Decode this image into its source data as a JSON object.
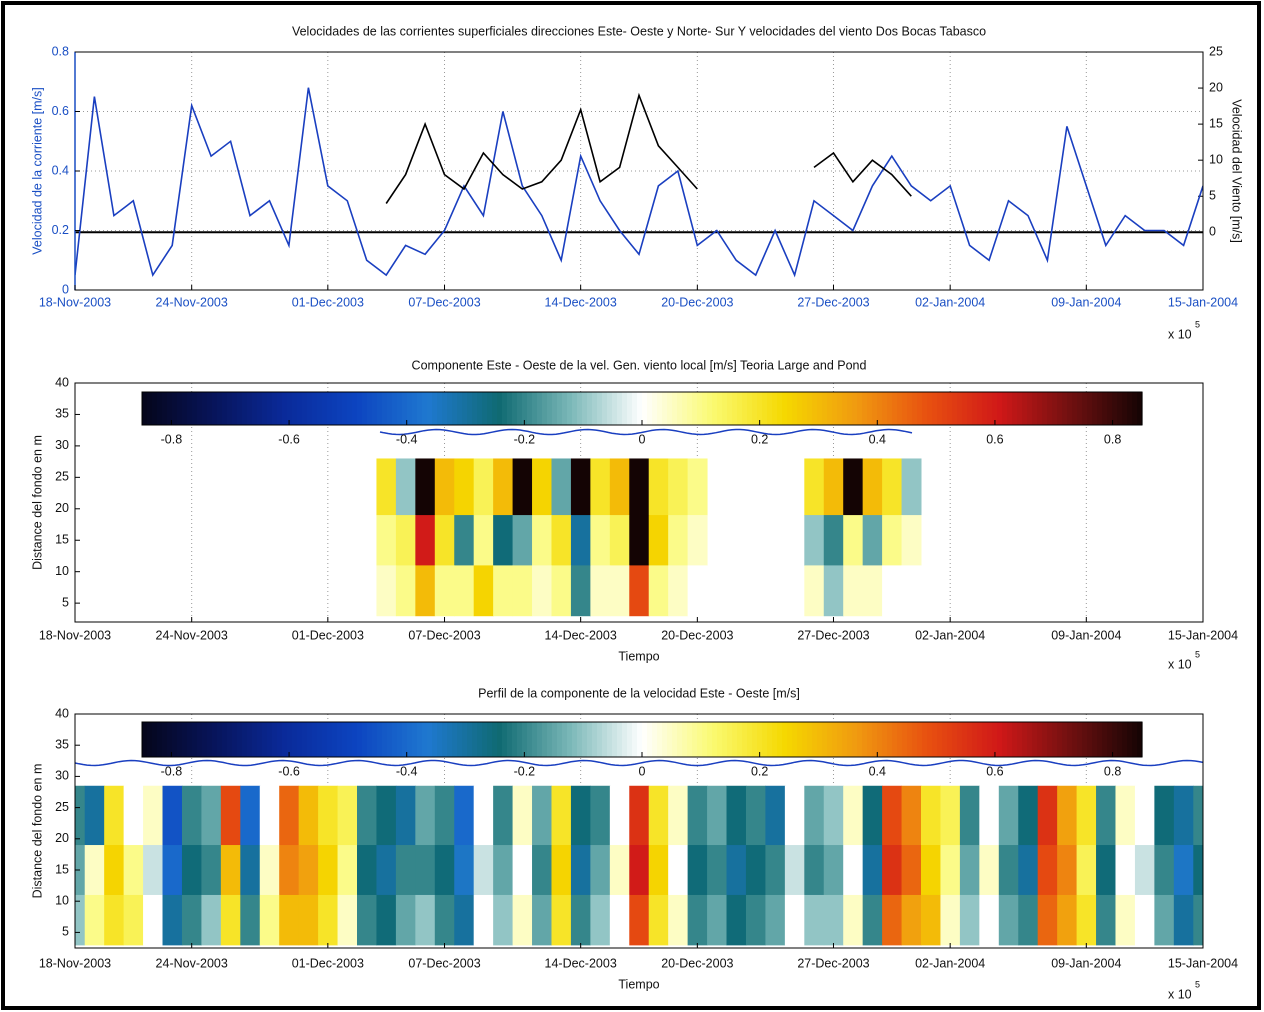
{
  "chart_data": [
    {
      "type": "line",
      "title": "Velocidades de las corrientes superficiales direcciones Este- Oeste y Norte- Sur Y velocidades del viento Dos Bocas Tabasco",
      "ylabel": "Velocidad de la corriente [m/s]",
      "y2label": "Velocidad del Viento [m/s]",
      "x_multiplier": "x 10",
      "x_multiplier_exponent": "5",
      "x": [
        731903,
        731904,
        731905,
        731906,
        731907,
        731908,
        731909,
        731910,
        731911,
        731912,
        731913,
        731914,
        731915,
        731916,
        731917,
        731918,
        731919,
        731920,
        731921,
        731922,
        731923,
        731924,
        731925,
        731926,
        731927,
        731928,
        731929,
        731930,
        731931,
        731932,
        731933,
        731934,
        731935,
        731936,
        731937,
        731938,
        731939,
        731940,
        731941,
        731942,
        731943,
        731944,
        731945,
        731946,
        731947,
        731948,
        731949,
        731950,
        731951,
        731952,
        731953,
        731954,
        731955,
        731956,
        731957,
        731958,
        731959,
        731960,
        731961
      ],
      "xlim": [
        731903,
        731961
      ],
      "xticks": [
        {
          "value": 731903,
          "label": "18-Nov-2003"
        },
        {
          "value": 731909,
          "label": "24-Nov-2003"
        },
        {
          "value": 731916,
          "label": "01-Dec-2003"
        },
        {
          "value": 731922,
          "label": "07-Dec-2003"
        },
        {
          "value": 731929,
          "label": "14-Dec-2003"
        },
        {
          "value": 731935,
          "label": "20-Dec-2003"
        },
        {
          "value": 731942,
          "label": "27-Dec-2003"
        },
        {
          "value": 731948,
          "label": "02-Jan-2004"
        },
        {
          "value": 731955,
          "label": "09-Jan-2004"
        },
        {
          "value": 731961,
          "label": "15-Jan-2004"
        }
      ],
      "ylim": [
        0,
        0.8
      ],
      "yticks": [
        0,
        0.2,
        0.4,
        0.6,
        0.8
      ],
      "y2lim": [
        -8,
        25
      ],
      "y2ticks": [
        0,
        5,
        10,
        15,
        20,
        25
      ],
      "grid": true,
      "series": [
        {
          "color": "#1a3fc0",
          "values": [
            0.05,
            0.65,
            0.25,
            0.3,
            0.05,
            0.15,
            0.62,
            0.45,
            0.5,
            0.25,
            0.3,
            0.15,
            0.68,
            0.35,
            0.3,
            0.1,
            0.05,
            0.15,
            0.12,
            0.2,
            0.35,
            0.25,
            0.6,
            0.35,
            0.25,
            0.1,
            0.45,
            0.3,
            0.2,
            0.12,
            0.35,
            0.4,
            0.15,
            0.2,
            0.1,
            0.05,
            0.2,
            0.05,
            0.3,
            0.25,
            0.2,
            0.35,
            0.45,
            0.35,
            0.3,
            0.35,
            0.15,
            0.1,
            0.3,
            0.25,
            0.1,
            0.55,
            0.35,
            0.15,
            0.25,
            0.2,
            0.2,
            0.15,
            0.35
          ]
        },
        {
          "color": "#000000",
          "axis": "y2",
          "values": [
            null,
            null,
            null,
            null,
            null,
            null,
            null,
            null,
            null,
            null,
            null,
            null,
            null,
            null,
            null,
            null,
            4,
            8,
            15,
            8,
            6,
            11,
            8,
            6,
            7,
            10,
            17,
            7,
            9,
            19,
            12,
            9,
            6,
            null,
            null,
            null,
            null,
            null,
            9,
            11,
            7,
            10,
            8,
            5,
            null,
            null,
            null,
            null,
            null,
            null,
            null,
            null,
            null,
            null,
            null,
            null,
            null,
            null,
            null
          ]
        }
      ]
    },
    {
      "type": "heatmap",
      "title": "Componente Este - Oeste de la vel. Gen. viento local [m/s] Teoria Large and Pond",
      "xlabel": "Tiempo",
      "ylabel": "Distance del fondo en m",
      "x_multiplier": "x 10",
      "x_multiplier_exponent": "5",
      "x": [
        731903,
        731904,
        731905,
        731906,
        731907,
        731908,
        731909,
        731910,
        731911,
        731912,
        731913,
        731914,
        731915,
        731916,
        731917,
        731918,
        731919,
        731920,
        731921,
        731922,
        731923,
        731924,
        731925,
        731926,
        731927,
        731928,
        731929,
        731930,
        731931,
        731932,
        731933,
        731934,
        731935,
        731936,
        731937,
        731938,
        731939,
        731940,
        731941,
        731942,
        731943,
        731944,
        731945,
        731946,
        731947,
        731948,
        731949,
        731950,
        731951,
        731952,
        731953,
        731954,
        731955,
        731956,
        731957,
        731958,
        731959,
        731960,
        731961
      ],
      "xlim": [
        731903,
        731961
      ],
      "xticks": [
        {
          "value": 731903,
          "label": "18-Nov-2003"
        },
        {
          "value": 731909,
          "label": "24-Nov-2003"
        },
        {
          "value": 731916,
          "label": "01-Dec-2003"
        },
        {
          "value": 731922,
          "label": "07-Dec-2003"
        },
        {
          "value": 731929,
          "label": "14-Dec-2003"
        },
        {
          "value": 731935,
          "label": "20-Dec-2003"
        },
        {
          "value": 731942,
          "label": "27-Dec-2003"
        },
        {
          "value": 731948,
          "label": "02-Jan-2004"
        },
        {
          "value": 731955,
          "label": "09-Jan-2004"
        },
        {
          "value": 731961,
          "label": "15-Jan-2004"
        }
      ],
      "ylim": [
        2,
        40
      ],
      "yticks": [
        5,
        10,
        15,
        20,
        25,
        30,
        35,
        40
      ],
      "y_edges": [
        28,
        19,
        11,
        3
      ],
      "grid": true,
      "clim": [
        -0.85,
        0.85
      ],
      "cticks": [
        -0.8,
        -0.6,
        -0.4,
        -0.2,
        0,
        0.2,
        0.4,
        0.6,
        0.8
      ],
      "colormap": [
        "#05051a",
        "#07145a",
        "#0a2a9a",
        "#0c44c0",
        "#1f78d0",
        "#0f6a72",
        "#7bb8b8",
        "#ffffff",
        "#fafa70",
        "#f5d800",
        "#f09a10",
        "#e85010",
        "#d01818",
        "#701010",
        "#140404"
      ],
      "z": [
        [
          null,
          null,
          null,
          null,
          null,
          null,
          null,
          null,
          null,
          null,
          null,
          null,
          null,
          null,
          null,
          null,
          0.2,
          -0.1,
          0.85,
          0.3,
          0.25,
          0.15,
          0.3,
          0.85,
          0.25,
          -0.15,
          0.85,
          0.2,
          0.3,
          0.85,
          0.2,
          0.15,
          0.1,
          null,
          null,
          null,
          null,
          null,
          0.2,
          0.3,
          0.85,
          0.3,
          0.2,
          -0.1,
          null,
          null,
          null,
          null,
          null,
          null,
          null,
          null,
          null,
          null,
          null,
          null,
          null,
          null,
          null
        ],
        [
          null,
          null,
          null,
          null,
          null,
          null,
          null,
          null,
          null,
          null,
          null,
          null,
          null,
          null,
          null,
          null,
          0.1,
          0.15,
          0.6,
          0.2,
          -0.2,
          0.1,
          -0.25,
          -0.15,
          0.1,
          0.2,
          -0.3,
          0.1,
          0.15,
          0.85,
          0.25,
          0.1,
          0.05,
          null,
          null,
          null,
          null,
          null,
          -0.1,
          -0.2,
          0.1,
          -0.15,
          0.1,
          0.05,
          null,
          null,
          null,
          null,
          null,
          null,
          null,
          null,
          null,
          null,
          null,
          null,
          null,
          null,
          null
        ],
        [
          null,
          null,
          null,
          null,
          null,
          null,
          null,
          null,
          null,
          null,
          null,
          null,
          null,
          null,
          null,
          null,
          0.05,
          0.1,
          0.3,
          0.1,
          0.1,
          0.25,
          0.1,
          0.1,
          0.05,
          0.1,
          -0.2,
          0.05,
          0.05,
          0.5,
          0.1,
          0.05,
          0.0,
          null,
          null,
          null,
          null,
          null,
          0.05,
          -0.1,
          0.05,
          0.05,
          0.0,
          0.0,
          null,
          null,
          null,
          null,
          null,
          null,
          null,
          null,
          null,
          null,
          null,
          null,
          null,
          null,
          null
        ]
      ]
    },
    {
      "type": "heatmap",
      "title": "Perfil de la componente de la velocidad Este - Oeste [m/s]",
      "xlabel": "Tiempo",
      "ylabel": "Distance del fondo en m",
      "x_multiplier": "x 10",
      "x_multiplier_exponent": "5",
      "x": [
        731903,
        731904,
        731905,
        731906,
        731907,
        731908,
        731909,
        731910,
        731911,
        731912,
        731913,
        731914,
        731915,
        731916,
        731917,
        731918,
        731919,
        731920,
        731921,
        731922,
        731923,
        731924,
        731925,
        731926,
        731927,
        731928,
        731929,
        731930,
        731931,
        731932,
        731933,
        731934,
        731935,
        731936,
        731937,
        731938,
        731939,
        731940,
        731941,
        731942,
        731943,
        731944,
        731945,
        731946,
        731947,
        731948,
        731949,
        731950,
        731951,
        731952,
        731953,
        731954,
        731955,
        731956,
        731957,
        731958,
        731959,
        731960,
        731961
      ],
      "xlim": [
        731903,
        731961
      ],
      "xticks": [
        {
          "value": 731903,
          "label": "18-Nov-2003"
        },
        {
          "value": 731909,
          "label": "24-Nov-2003"
        },
        {
          "value": 731916,
          "label": "01-Dec-2003"
        },
        {
          "value": 731922,
          "label": "07-Dec-2003"
        },
        {
          "value": 731929,
          "label": "14-Dec-2003"
        },
        {
          "value": 731935,
          "label": "20-Dec-2003"
        },
        {
          "value": 731942,
          "label": "27-Dec-2003"
        },
        {
          "value": 731948,
          "label": "02-Jan-2004"
        },
        {
          "value": 731955,
          "label": "09-Jan-2004"
        },
        {
          "value": 731961,
          "label": "15-Jan-2004"
        }
      ],
      "ylim": [
        2.5,
        40
      ],
      "yticks": [
        5,
        10,
        15,
        20,
        25,
        30,
        35,
        40
      ],
      "y_edges": [
        28.5,
        19,
        11,
        3
      ],
      "grid": true,
      "clim": [
        -0.85,
        0.85
      ],
      "cticks": [
        -0.8,
        -0.6,
        -0.4,
        -0.2,
        0,
        0.2,
        0.4,
        0.6,
        0.8
      ],
      "colormap": [
        "#05051a",
        "#07145a",
        "#0a2a9a",
        "#0c44c0",
        "#1f78d0",
        "#0f6a72",
        "#7bb8b8",
        "#ffffff",
        "#fafa70",
        "#f5d800",
        "#f09a10",
        "#e85010",
        "#d01818",
        "#701010",
        "#140404"
      ],
      "z": [
        [
          -0.2,
          -0.3,
          0.2,
          0.0,
          0.05,
          -0.45,
          -0.2,
          -0.15,
          0.5,
          -0.4,
          0.0,
          0.45,
          0.3,
          0.2,
          0.15,
          -0.2,
          -0.25,
          -0.3,
          -0.15,
          -0.2,
          -0.4,
          0.0,
          -0.2,
          0.05,
          -0.15,
          0.2,
          -0.25,
          -0.2,
          0.0,
          0.55,
          0.2,
          0.05,
          -0.2,
          -0.15,
          -0.25,
          -0.2,
          -0.3,
          0.0,
          -0.15,
          -0.1,
          0.05,
          -0.25,
          0.5,
          0.4,
          0.2,
          0.15,
          -0.2,
          0.0,
          -0.15,
          -0.25,
          0.55,
          0.35,
          0.2,
          -0.2,
          0.05,
          0.0,
          -0.25,
          -0.3,
          -0.2
        ],
        [
          -0.15,
          0.05,
          0.25,
          0.1,
          -0.05,
          -0.4,
          -0.25,
          -0.2,
          0.3,
          -0.3,
          0.05,
          0.4,
          0.35,
          0.25,
          0.1,
          -0.25,
          -0.3,
          -0.2,
          -0.2,
          -0.25,
          -0.35,
          -0.05,
          -0.15,
          0.0,
          -0.2,
          0.25,
          -0.3,
          -0.15,
          0.05,
          0.6,
          0.25,
          0.0,
          -0.25,
          -0.2,
          -0.3,
          -0.25,
          -0.2,
          -0.05,
          -0.2,
          -0.15,
          0.0,
          -0.3,
          0.55,
          0.45,
          0.25,
          0.1,
          -0.15,
          0.05,
          -0.2,
          -0.3,
          0.5,
          0.4,
          0.15,
          -0.25,
          0.0,
          -0.05,
          -0.2,
          -0.35,
          -0.25
        ],
        [
          -0.1,
          0.1,
          0.2,
          0.15,
          0.0,
          -0.3,
          -0.2,
          -0.1,
          0.2,
          -0.2,
          0.1,
          0.3,
          0.3,
          0.2,
          0.05,
          -0.2,
          -0.25,
          -0.15,
          -0.1,
          -0.2,
          -0.3,
          0.0,
          -0.1,
          0.05,
          -0.15,
          0.2,
          -0.2,
          -0.1,
          0.0,
          0.5,
          0.2,
          0.05,
          -0.2,
          -0.15,
          -0.25,
          -0.2,
          -0.15,
          0.0,
          -0.1,
          -0.1,
          0.05,
          -0.2,
          0.45,
          0.35,
          0.3,
          0.05,
          -0.1,
          0.0,
          -0.15,
          -0.2,
          0.45,
          0.35,
          0.2,
          -0.2,
          0.05,
          0.0,
          -0.15,
          -0.3,
          -0.2
        ]
      ]
    }
  ]
}
